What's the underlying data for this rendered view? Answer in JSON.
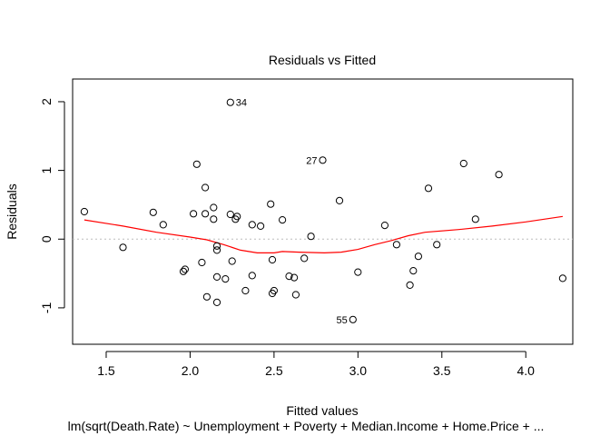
{
  "chart_data": {
    "type": "scatter",
    "title": "Residuals vs Fitted",
    "xlabel": "Fitted values",
    "ylabel": "Residuals",
    "subtitle": "lm(sqrt(Death.Rate) ~ Unemployment + Poverty + Median.Income + Home.Price + ...",
    "xlim": [
      1.3,
      4.28
    ],
    "ylim": [
      -1.53,
      2.33
    ],
    "x_ticks": [
      "1.5",
      "2.0",
      "2.5",
      "3.0",
      "3.5",
      "4.0"
    ],
    "y_ticks": [
      "-1",
      "0",
      "1",
      "2"
    ],
    "grid": false,
    "reference_line": {
      "y": 0,
      "style": "dotted",
      "color": "#bdbdbd"
    },
    "points_color": "#000000",
    "smooth_color": "#ff0000",
    "points": [
      {
        "x": 1.37,
        "y": 0.4
      },
      {
        "x": 1.6,
        "y": -0.12
      },
      {
        "x": 1.78,
        "y": 0.39
      },
      {
        "x": 1.84,
        "y": 0.21
      },
      {
        "x": 1.96,
        "y": -0.47
      },
      {
        "x": 1.97,
        "y": -0.44
      },
      {
        "x": 2.02,
        "y": 0.37
      },
      {
        "x": 2.04,
        "y": 1.09
      },
      {
        "x": 2.07,
        "y": -0.34
      },
      {
        "x": 2.09,
        "y": 0.75
      },
      {
        "x": 2.09,
        "y": 0.37
      },
      {
        "x": 2.1,
        "y": -0.84
      },
      {
        "x": 2.14,
        "y": 0.29
      },
      {
        "x": 2.14,
        "y": 0.46
      },
      {
        "x": 2.16,
        "y": -0.1
      },
      {
        "x": 2.16,
        "y": -0.16
      },
      {
        "x": 2.16,
        "y": -0.55
      },
      {
        "x": 2.16,
        "y": -0.92
      },
      {
        "x": 2.21,
        "y": -0.58
      },
      {
        "x": 2.24,
        "y": 0.36
      },
      {
        "x": 2.25,
        "y": -0.32
      },
      {
        "x": 2.27,
        "y": 0.29
      },
      {
        "x": 2.28,
        "y": 0.33
      },
      {
        "x": 2.33,
        "y": -0.75
      },
      {
        "x": 2.37,
        "y": 0.21
      },
      {
        "x": 2.37,
        "y": -0.53
      },
      {
        "x": 2.42,
        "y": 0.19
      },
      {
        "x": 2.48,
        "y": 0.51
      },
      {
        "x": 2.49,
        "y": -0.3
      },
      {
        "x": 2.49,
        "y": -0.79
      },
      {
        "x": 2.5,
        "y": -0.75
      },
      {
        "x": 2.55,
        "y": 0.28
      },
      {
        "x": 2.59,
        "y": -0.54
      },
      {
        "x": 2.62,
        "y": -0.56
      },
      {
        "x": 2.63,
        "y": -0.81
      },
      {
        "x": 2.68,
        "y": -0.28
      },
      {
        "x": 2.72,
        "y": 0.04
      },
      {
        "x": 2.89,
        "y": 0.56
      },
      {
        "x": 3.0,
        "y": -0.48
      },
      {
        "x": 3.16,
        "y": 0.2
      },
      {
        "x": 3.23,
        "y": -0.08
      },
      {
        "x": 3.31,
        "y": -0.67
      },
      {
        "x": 3.33,
        "y": -0.46
      },
      {
        "x": 3.36,
        "y": -0.25
      },
      {
        "x": 3.42,
        "y": 0.74
      },
      {
        "x": 3.47,
        "y": -0.08
      },
      {
        "x": 3.63,
        "y": 1.1
      },
      {
        "x": 3.7,
        "y": 0.29
      },
      {
        "x": 3.84,
        "y": 0.94
      },
      {
        "x": 4.22,
        "y": -0.57
      }
    ],
    "labeled_points": [
      {
        "label": "34",
        "x": 2.24,
        "y": 1.99
      },
      {
        "label": "27",
        "x": 2.79,
        "y": 1.15
      },
      {
        "label": "55",
        "x": 2.97,
        "y": -1.17
      }
    ],
    "smooth_line": [
      {
        "x": 1.37,
        "y": 0.28
      },
      {
        "x": 1.6,
        "y": 0.19
      },
      {
        "x": 1.8,
        "y": 0.1
      },
      {
        "x": 2.0,
        "y": 0.03
      },
      {
        "x": 2.1,
        "y": -0.01
      },
      {
        "x": 2.2,
        "y": -0.08
      },
      {
        "x": 2.3,
        "y": -0.16
      },
      {
        "x": 2.4,
        "y": -0.2
      },
      {
        "x": 2.5,
        "y": -0.2
      },
      {
        "x": 2.55,
        "y": -0.18
      },
      {
        "x": 2.65,
        "y": -0.19
      },
      {
        "x": 2.8,
        "y": -0.2
      },
      {
        "x": 2.9,
        "y": -0.19
      },
      {
        "x": 3.0,
        "y": -0.15
      },
      {
        "x": 3.1,
        "y": -0.08
      },
      {
        "x": 3.2,
        "y": -0.02
      },
      {
        "x": 3.3,
        "y": 0.05
      },
      {
        "x": 3.4,
        "y": 0.1
      },
      {
        "x": 3.6,
        "y": 0.14
      },
      {
        "x": 3.8,
        "y": 0.19
      },
      {
        "x": 4.0,
        "y": 0.25
      },
      {
        "x": 4.22,
        "y": 0.33
      }
    ]
  }
}
